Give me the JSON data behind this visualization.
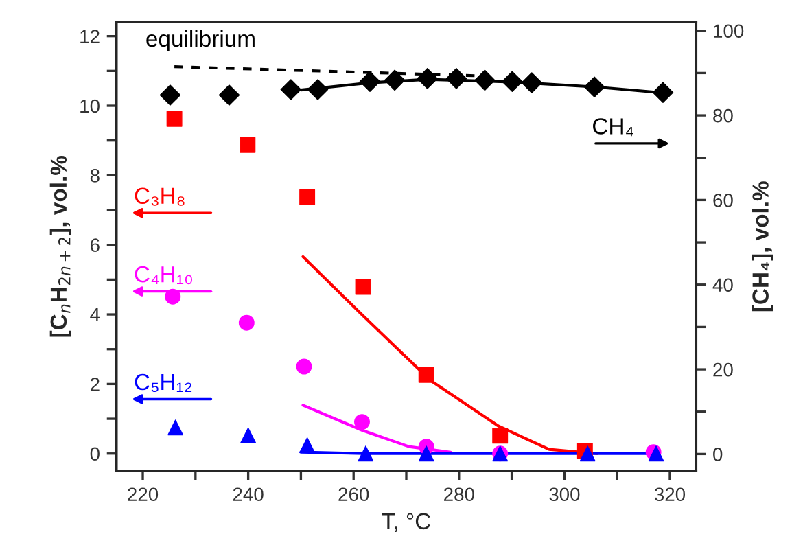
{
  "chart_data": {
    "type": "scatter",
    "xlabel": "T, °C",
    "ylabel": "[C$_{n}$H$_{2n+2}$], vol.%",
    "y2label": "[CH₄], vol.%",
    "xlim": [
      215,
      325
    ],
    "xticks": [
      220,
      {
        "value": 230,
        "label": null
      },
      240,
      {
        "value": 250,
        "label": null
      },
      260,
      {
        "value": 270,
        "label": null
      },
      280,
      {
        "value": 290,
        "label": null
      },
      300,
      {
        "value": 310,
        "label": null
      },
      320
    ],
    "ylim": [
      -0.5,
      12.4
    ],
    "yticks": [
      0,
      {
        "value": 1,
        "label": null
      },
      2,
      {
        "value": 3,
        "label": null
      },
      4,
      {
        "value": 5,
        "label": null
      },
      6,
      {
        "value": 7,
        "label": null
      },
      8,
      {
        "value": 9,
        "label": null
      },
      10,
      {
        "value": 11,
        "label": null
      },
      12
    ],
    "y2lim": [
      -4,
      102
    ],
    "y2ticks": [
      0,
      {
        "value": 10,
        "label": null
      },
      20,
      {
        "value": 30,
        "label": null
      },
      40,
      {
        "value": 50,
        "label": null
      },
      60,
      {
        "value": 70,
        "label": null
      },
      80,
      {
        "value": 90,
        "label": null
      },
      100
    ],
    "grid": false,
    "legend": "left",
    "series": [
      {
        "name": "CH₄",
        "axis": "y2",
        "marker": "diamond",
        "color": "#000000",
        "x": [
          225.2,
          236.4,
          248.1,
          253.2,
          263.1,
          267.8,
          274.0,
          279.5,
          284.9,
          290.1,
          293.8,
          305.7,
          318.7
        ],
        "values": [
          84.8,
          84.8,
          86.1,
          86.1,
          88.0,
          88.3,
          88.7,
          88.7,
          88.3,
          88.0,
          87.7,
          86.7,
          85.4
        ]
      },
      {
        "type": "line",
        "axis": "y2",
        "marker": "none",
        "line_style": "solid",
        "color": "#000000",
        "x": [
          250,
          263,
          274,
          290,
          306,
          318
        ],
        "values": [
          86,
          87.7,
          88.5,
          87.9,
          86.7,
          85.4
        ]
      },
      {
        "name": "equilibrium",
        "type": "line",
        "axis": "y2",
        "marker": "none",
        "line_style": "dashed",
        "color": "#000000",
        "x": [
          226,
          285
        ],
        "values": [
          91.5,
          89.3
        ]
      },
      {
        "name": "C₃H₈",
        "marker": "square",
        "color": "#ff0000",
        "x": [
          226,
          239.9,
          251.2,
          261.8,
          273.8,
          287.8,
          303.9
        ],
        "values": [
          9.62,
          8.87,
          7.37,
          4.79,
          2.26,
          0.51,
          0.08
        ]
      },
      {
        "type": "line",
        "marker": "none",
        "line_style": "solid",
        "color": "#ff0000",
        "x": [
          250.4,
          261.8,
          274.6,
          287.5,
          297.1,
          306.2
        ],
        "values": [
          5.66,
          3.96,
          2.1,
          0.79,
          0.12,
          0
        ]
      },
      {
        "name": "C₄H₁₀",
        "marker": "circle",
        "color": "#ff00ff",
        "x": [
          225.7,
          239.7,
          250.6,
          261.6,
          273.8,
          287.8,
          303.9,
          316.9
        ],
        "values": [
          4.51,
          3.76,
          2.5,
          0.91,
          0.2,
          0,
          null,
          0.04
        ]
      },
      {
        "type": "line",
        "marker": "none",
        "line_style": "solid",
        "color": "#ff00ff",
        "x": [
          250.4,
          261.6,
          270.5,
          278.4
        ],
        "values": [
          1.39,
          0.67,
          0.2,
          0.04
        ]
      },
      {
        "name": "C₅H₁₂",
        "marker": "triangle",
        "color": "#0000ff",
        "x": [
          226.2,
          240,
          251.2,
          262.3,
          273.8,
          287.8,
          304.4,
          317.4
        ],
        "values": [
          0.75,
          0.52,
          0.24,
          0,
          0,
          0,
          0,
          0
        ]
      },
      {
        "type": "line",
        "marker": "none",
        "line_style": "solid",
        "color": "#0000ff",
        "x": [
          250,
          262,
          318
        ],
        "values": [
          0.04,
          0,
          0
        ]
      }
    ]
  }
}
